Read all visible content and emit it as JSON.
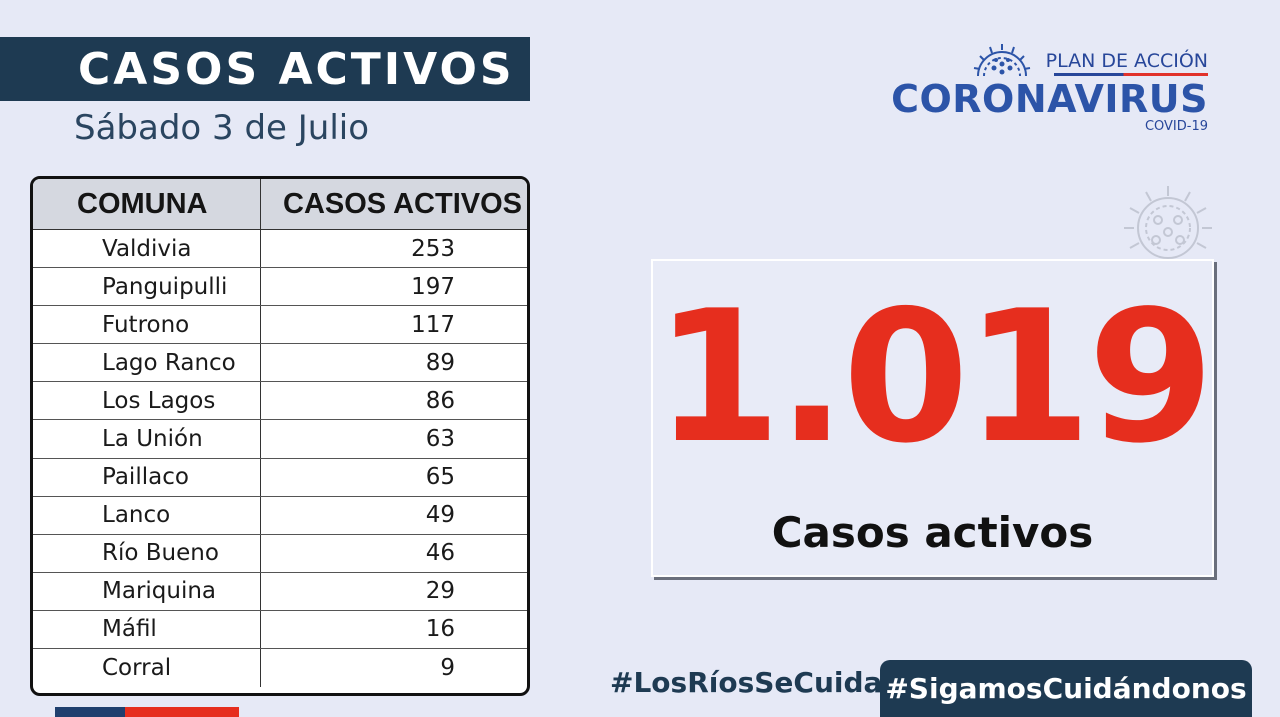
{
  "header": {
    "title": "CASOS ACTIVOS",
    "date": "Sábado 3 de Julio"
  },
  "logo": {
    "plan": "PLAN DE ACCIÓN",
    "main": "CORONAVIRUS",
    "sub": "COVID-19",
    "icon": "virus-icon"
  },
  "table": {
    "headers": [
      "COMUNA",
      "CASOS ACTIVOS"
    ],
    "rows": [
      {
        "comuna": "Valdivia",
        "casos": "253"
      },
      {
        "comuna": "Panguipulli",
        "casos": "197"
      },
      {
        "comuna": "Futrono",
        "casos": "117"
      },
      {
        "comuna": "Lago Ranco",
        "casos": "89"
      },
      {
        "comuna": "Los Lagos",
        "casos": "86"
      },
      {
        "comuna": "La Unión",
        "casos": "63"
      },
      {
        "comuna": "Paillaco",
        "casos": "65"
      },
      {
        "comuna": "Lanco",
        "casos": "49"
      },
      {
        "comuna": "Río Bueno",
        "casos": "46"
      },
      {
        "comuna": "Mariquina",
        "casos": "29"
      },
      {
        "comuna": "Máfil",
        "casos": "16"
      },
      {
        "comuna": "Corral",
        "casos": "9"
      }
    ]
  },
  "summary": {
    "total": "1.019",
    "label": "Casos activos"
  },
  "footer": {
    "hashtag_left": "#LosRíosSeCuida",
    "hashtag_right": "#SigamosCuidándonos"
  },
  "colors": {
    "navy": "#1e3a52",
    "accent_red": "#e62e1e",
    "logo_blue": "#2c54a8",
    "background": "#e6e9f6"
  }
}
